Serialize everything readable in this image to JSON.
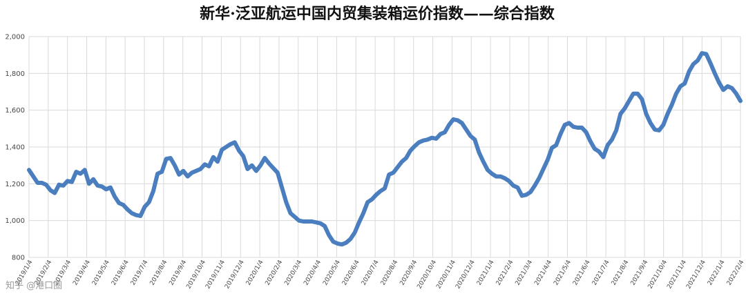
{
  "chart_data": {
    "type": "line",
    "title": "新华·泛亚航运中国内贸集装箱运价指数——综合指数",
    "xlabel": "",
    "ylabel": "",
    "ylim": [
      800,
      2000
    ],
    "yticks": [
      800,
      1000,
      1200,
      1400,
      1600,
      1800,
      2000
    ],
    "yticklabels": [
      "800",
      "1,000",
      "1,200",
      "1,400",
      "1,600",
      "1,800",
      "2,000"
    ],
    "grid": true,
    "legend": "none",
    "line_color": "#4a7ebf",
    "x_tick_labels": [
      "2019/1/4",
      "2019/2/4",
      "2019/3/4",
      "2019/4/4",
      "2019/5/4",
      "2019/6/4",
      "2019/7/4",
      "2019/8/4",
      "2019/9/4",
      "2019/10/4",
      "2019/11/4",
      "2019/12/4",
      "2020/1/4",
      "2020/2/4",
      "2020/3/4",
      "2020/4/4",
      "2020/5/4",
      "2020/6/4",
      "2020/7/4",
      "2020/8/4",
      "2020/9/4",
      "2020/10/4",
      "2020/11/4",
      "2020/12/4",
      "2021/1/4",
      "2021/2/4",
      "2021/3/4",
      "2021/4/4",
      "2021/5/4",
      "2021/6/4",
      "2021/7/4",
      "2021/8/4",
      "2021/9/4",
      "2021/10/4",
      "2021/11/4",
      "2021/12/4",
      "2022/1/4",
      "2022/2/4"
    ],
    "series": [
      {
        "values": [
          1275,
          1240,
          1205,
          1205,
          1195,
          1165,
          1150,
          1195,
          1190,
          1215,
          1210,
          1265,
          1255,
          1275,
          1200,
          1225,
          1190,
          1185,
          1170,
          1180,
          1130,
          1095,
          1085,
          1060,
          1040,
          1030,
          1025,
          1075,
          1100,
          1160,
          1255,
          1265,
          1335,
          1340,
          1300,
          1250,
          1270,
          1240,
          1260,
          1270,
          1280,
          1305,
          1295,
          1345,
          1320,
          1385,
          1400,
          1415,
          1425,
          1380,
          1350,
          1280,
          1300,
          1270,
          1300,
          1340,
          1310,
          1285,
          1260,
          1180,
          1100,
          1040,
          1020,
          1000,
          995,
          995,
          995,
          990,
          985,
          970,
          920,
          885,
          875,
          870,
          880,
          900,
          935,
          990,
          1040,
          1100,
          1115,
          1140,
          1160,
          1175,
          1250,
          1260,
          1290,
          1320,
          1340,
          1380,
          1405,
          1425,
          1435,
          1440,
          1450,
          1445,
          1470,
          1480,
          1520,
          1550,
          1545,
          1530,
          1495,
          1460,
          1440,
          1370,
          1320,
          1275,
          1255,
          1240,
          1240,
          1230,
          1215,
          1190,
          1180,
          1135,
          1140,
          1155,
          1190,
          1230,
          1280,
          1330,
          1395,
          1410,
          1470,
          1520,
          1530,
          1510,
          1505,
          1505,
          1480,
          1430,
          1390,
          1375,
          1345,
          1410,
          1440,
          1490,
          1580,
          1610,
          1650,
          1690,
          1690,
          1660,
          1580,
          1530,
          1495,
          1490,
          1520,
          1580,
          1630,
          1690,
          1730,
          1745,
          1810,
          1850,
          1870,
          1910,
          1905,
          1855,
          1800,
          1750,
          1710,
          1730,
          1720,
          1690,
          1650
        ]
      }
    ]
  },
  "watermark": "知乎 @港口圈"
}
